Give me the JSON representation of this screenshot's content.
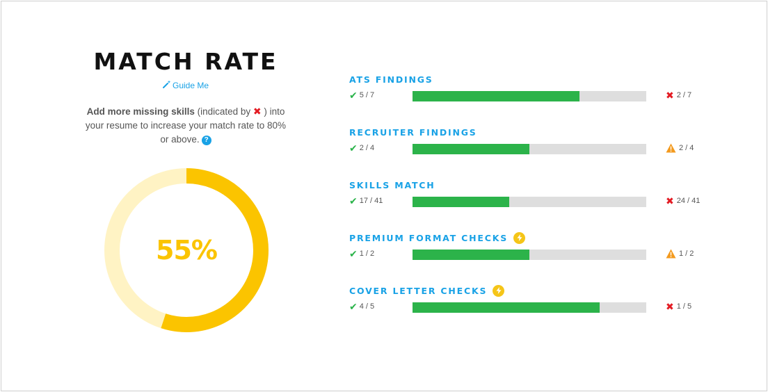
{
  "title": "MATCH RATE",
  "guide_label": "Guide Me",
  "description": {
    "bold": "Add more missing skills",
    "part1": " (indicated by ",
    "part2": " ) into your resume to increase your match rate to 80% or above."
  },
  "help_icon_label": "?",
  "match_rate": {
    "value": 55,
    "label": "55%"
  },
  "colors": {
    "accent_blue": "#19a2e6",
    "gauge_fill": "#fbc400",
    "gauge_track": "#fff3c4",
    "bar_fill": "#2cb34a",
    "bar_track": "#dedede",
    "fail_red": "#e31b23",
    "warn_orange": "#f39a1e"
  },
  "sections": [
    {
      "title": "ATS FINDINGS",
      "pass": "5 / 7",
      "fail": "2 / 7",
      "fraction": 0.714,
      "fail_icon": "x-icon",
      "premium": false
    },
    {
      "title": "RECRUITER FINDINGS",
      "pass": "2 / 4",
      "fail": "2 / 4",
      "fraction": 0.5,
      "fail_icon": "warning-icon",
      "premium": false
    },
    {
      "title": "SKILLS MATCH",
      "pass": "17 / 41",
      "fail": "24 / 41",
      "fraction": 0.415,
      "fail_icon": "x-icon",
      "premium": false
    },
    {
      "title": "PREMIUM FORMAT CHECKS",
      "pass": "1 / 2",
      "fail": "1 / 2",
      "fraction": 0.5,
      "fail_icon": "warning-icon",
      "premium": true
    },
    {
      "title": "COVER LETTER CHECKS",
      "pass": "4 / 5",
      "fail": "1 / 5",
      "fraction": 0.8,
      "fail_icon": "x-icon",
      "premium": true
    }
  ]
}
